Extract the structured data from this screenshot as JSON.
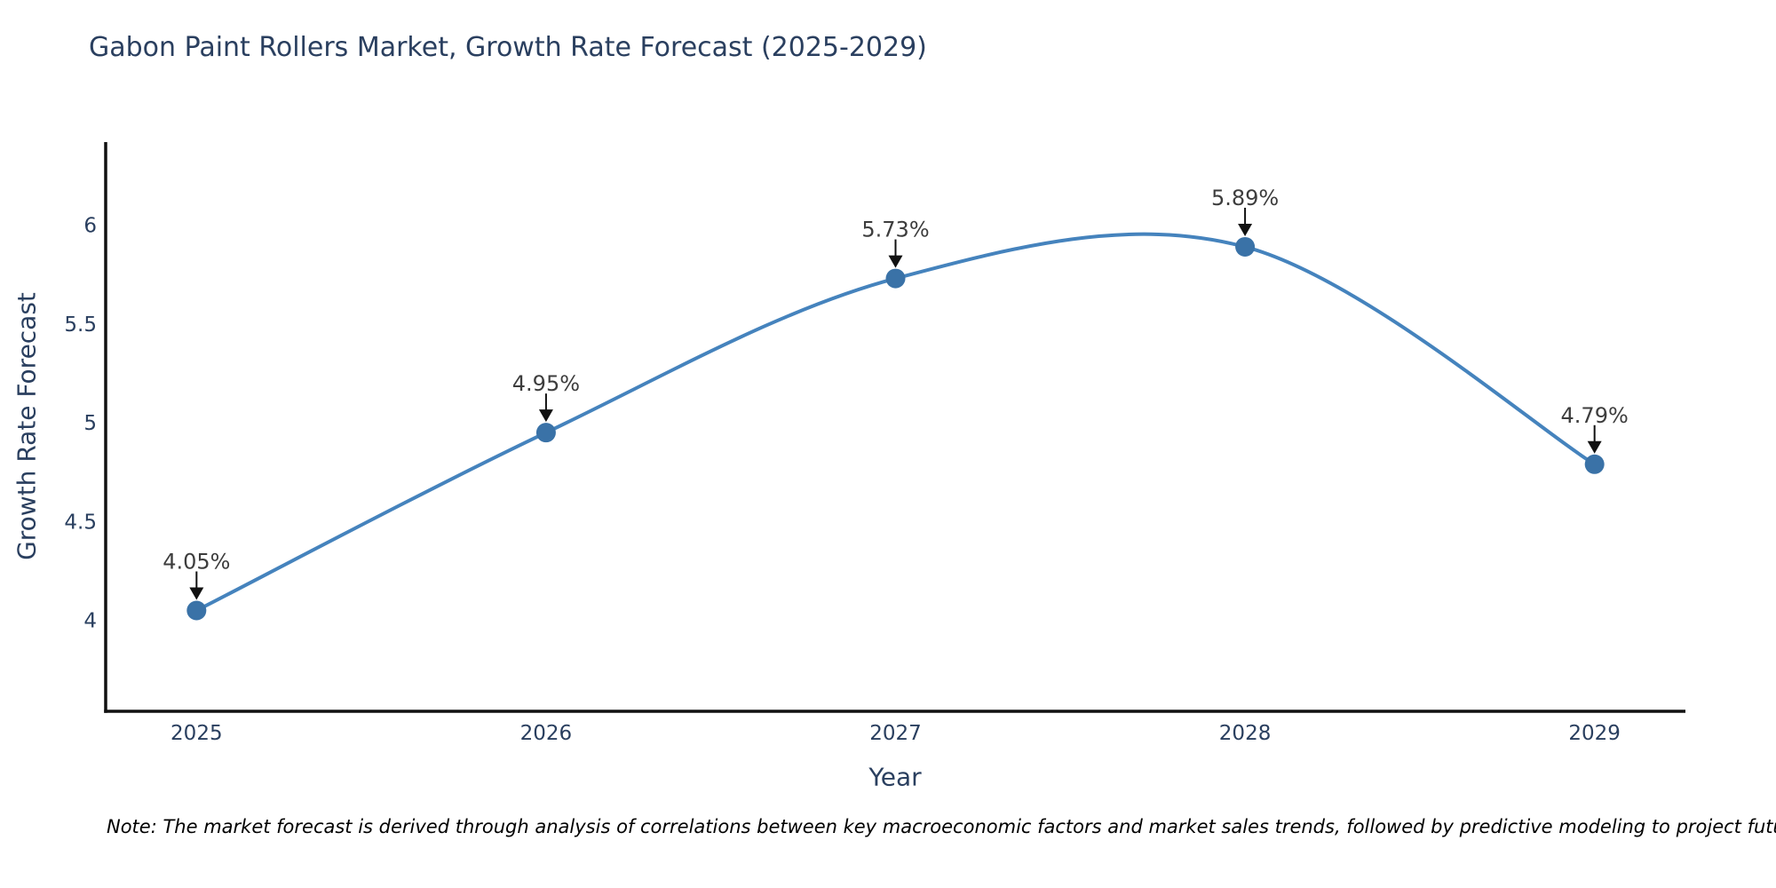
{
  "title": "Gabon Paint Rollers Market, Growth Rate Forecast (2025-2029)",
  "note": "Note: The market forecast is derived through analysis of correlations between key macroeconomic factors and market sales trends, followed by predictive modeling to project future sales",
  "chart_data": {
    "type": "line",
    "title": "Gabon Paint Rollers Market, Growth Rate Forecast (2025-2029)",
    "xlabel": "Year",
    "ylabel": "Growth Rate Forecast",
    "x": [
      2025,
      2026,
      2027,
      2028,
      2029
    ],
    "values": [
      4.05,
      4.95,
      5.73,
      5.89,
      4.79
    ],
    "point_labels": [
      "4.05%",
      "4.95%",
      "5.73%",
      "5.89%",
      "4.79%"
    ],
    "xticks": [
      2025,
      2026,
      2027,
      2028,
      2029
    ],
    "yticks": [
      4,
      4.5,
      5,
      5.5,
      6
    ],
    "xlim": [
      2024.74,
      2029.26
    ],
    "ylim": [
      3.54,
      6.42
    ],
    "line_shape": "spline",
    "grid": false,
    "legend": "none",
    "colors": {
      "line": "#4583bd",
      "marker": "#3a72a7",
      "axis": "#111111",
      "tick_text": "#2a3f5f",
      "annotation_text": "#3d3d3d",
      "arrow": "#111111",
      "title_text": "#2a3f5f",
      "background": "#ffffff"
    }
  }
}
